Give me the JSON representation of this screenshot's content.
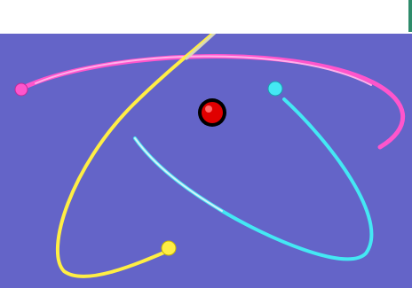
{
  "scene": {
    "background_color": "#6464c8",
    "top_strip_color": "#ffffff",
    "edge_strip_color": "#2e8b6b",
    "nucleus_color": "#e00000",
    "electron_colors": {
      "pink": "#ff55cc",
      "cyan": "#44e8f4",
      "yellow": "#ffee44"
    },
    "guide_line_color": "#d8d8b8"
  }
}
